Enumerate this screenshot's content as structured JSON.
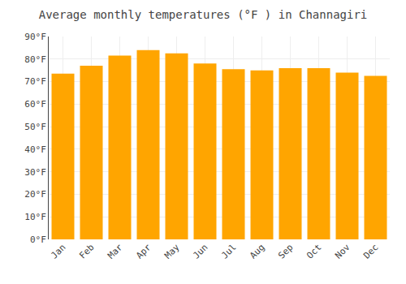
{
  "chart_data": {
    "type": "bar",
    "title": "Average monthly temperatures (°F ) in Channagiri",
    "categories": [
      "Jan",
      "Feb",
      "Mar",
      "Apr",
      "May",
      "Jun",
      "Jul",
      "Aug",
      "Sep",
      "Oct",
      "Nov",
      "Dec"
    ],
    "values": [
      73.5,
      77.0,
      81.5,
      84.0,
      82.5,
      78.0,
      75.5,
      75.0,
      76.0,
      76.0,
      74.0,
      72.5
    ],
    "color": "#FFA500",
    "ylim": [
      0,
      90
    ],
    "yticks": [
      {
        "value": 0,
        "label": "0°F"
      },
      {
        "value": 10,
        "label": "10°F"
      },
      {
        "value": 20,
        "label": "20°F"
      },
      {
        "value": 30,
        "label": "30°F"
      },
      {
        "value": 40,
        "label": "40°F"
      },
      {
        "value": 50,
        "label": "50°F"
      },
      {
        "value": 60,
        "label": "60°F"
      },
      {
        "value": 70,
        "label": "70°F"
      },
      {
        "value": 80,
        "label": "80°F"
      },
      {
        "value": 90,
        "label": "90°F"
      }
    ],
    "grid": true
  }
}
